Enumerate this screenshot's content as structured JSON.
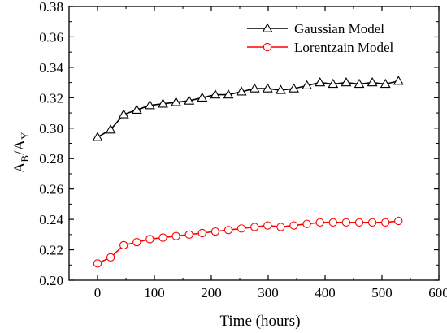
{
  "chart_data": {
    "type": "line",
    "title": "",
    "xlabel": "Time (hours)",
    "ylabel": {
      "main_a": "A",
      "sub_a": "B",
      "sep": "/",
      "main_b": "A",
      "sub_b": "Y"
    },
    "xlim": [
      -50,
      600
    ],
    "ylim": [
      0.2,
      0.38
    ],
    "xticks": [
      0,
      100,
      200,
      300,
      400,
      500,
      600
    ],
    "xtick_labels": [
      "0",
      "100",
      "200",
      "300",
      "400",
      "500",
      "600"
    ],
    "yticks": [
      0.2,
      0.22,
      0.24,
      0.26,
      0.28,
      0.3,
      0.32,
      0.34,
      0.36,
      0.38
    ],
    "ytick_labels": [
      "0.20",
      "0.22",
      "0.24",
      "0.26",
      "0.28",
      "0.30",
      "0.32",
      "0.34",
      "0.36",
      "0.38"
    ],
    "grid": false,
    "legend_position": "top-right",
    "x": [
      0,
      23,
      46,
      69,
      92,
      115,
      138,
      161,
      184,
      207,
      230,
      253,
      276,
      299,
      322,
      345,
      368,
      391,
      414,
      437,
      460,
      483,
      506,
      529
    ],
    "series": [
      {
        "name": "Gaussian Model",
        "color": "#000000",
        "marker": "triangle",
        "values": [
          0.294,
          0.299,
          0.309,
          0.312,
          0.315,
          0.316,
          0.317,
          0.318,
          0.32,
          0.322,
          0.322,
          0.324,
          0.326,
          0.326,
          0.325,
          0.326,
          0.328,
          0.33,
          0.329,
          0.33,
          0.329,
          0.33,
          0.329,
          0.331
        ]
      },
      {
        "name": "Lorentzain Model",
        "color": "#ff0000",
        "marker": "circle",
        "values": [
          0.211,
          0.215,
          0.223,
          0.225,
          0.227,
          0.228,
          0.229,
          0.23,
          0.231,
          0.232,
          0.233,
          0.234,
          0.235,
          0.236,
          0.235,
          0.236,
          0.237,
          0.238,
          0.238,
          0.238,
          0.238,
          0.238,
          0.238,
          0.239
        ]
      }
    ]
  }
}
